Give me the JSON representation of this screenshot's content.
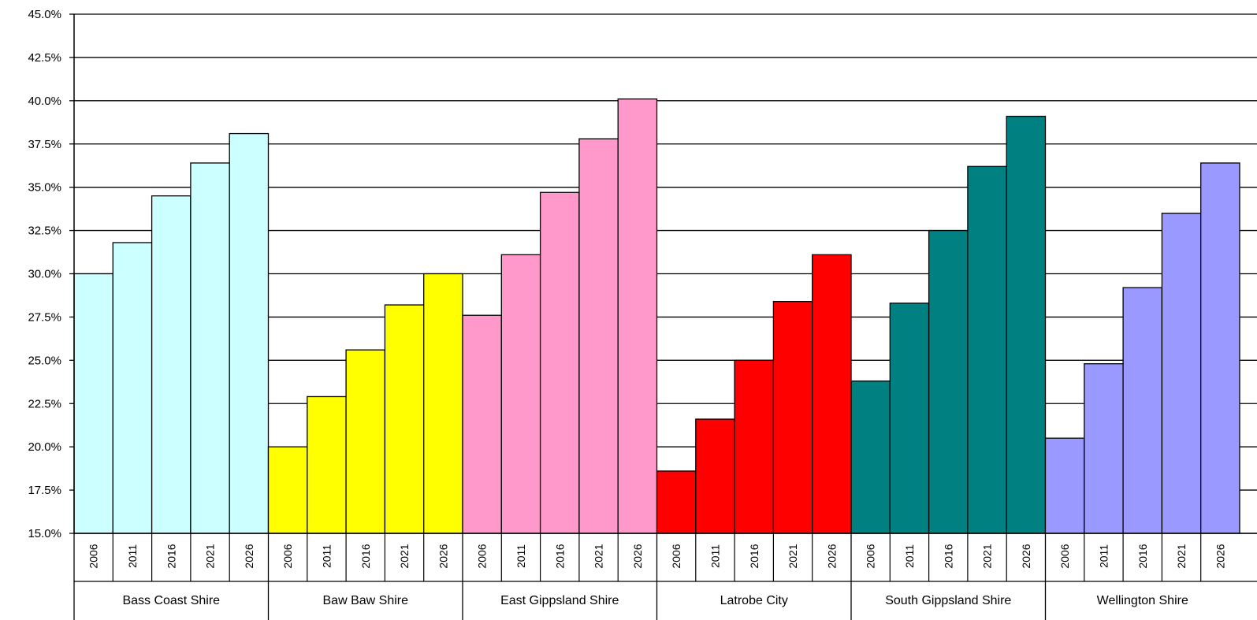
{
  "chart_data": {
    "type": "bar",
    "title": "",
    "xlabel": "",
    "ylabel": "",
    "ylim": [
      15.0,
      45.0
    ],
    "y_ticks": [
      "15.0%",
      "17.5%",
      "20.0%",
      "22.5%",
      "25.0%",
      "27.5%",
      "30.0%",
      "32.5%",
      "35.0%",
      "37.5%",
      "40.0%",
      "42.5%",
      "45.0%"
    ],
    "grid": "horizontal",
    "years": [
      "2006",
      "2011",
      "2016",
      "2021",
      "2026"
    ],
    "groups": [
      {
        "name": "Bass Coast Shire",
        "color": "#CCFFFF",
        "values": [
          30.0,
          31.8,
          34.5,
          36.4,
          38.1
        ]
      },
      {
        "name": "Baw Baw Shire",
        "color": "#FFFF00",
        "values": [
          20.0,
          22.9,
          25.6,
          28.2,
          30.0
        ]
      },
      {
        "name": "East Gippsland Shire",
        "color": "#FF99CC",
        "values": [
          27.6,
          31.1,
          34.7,
          37.8,
          40.1
        ]
      },
      {
        "name": "Latrobe City",
        "color": "#FF0000",
        "values": [
          18.6,
          21.6,
          25.0,
          28.4,
          31.1
        ]
      },
      {
        "name": "South Gippsland Shire",
        "color": "#008080",
        "values": [
          23.8,
          28.3,
          32.5,
          36.2,
          39.1
        ]
      },
      {
        "name": "Wellington Shire",
        "color": "#9999FF",
        "values": [
          20.5,
          24.8,
          29.2,
          33.5,
          36.4
        ]
      }
    ]
  }
}
